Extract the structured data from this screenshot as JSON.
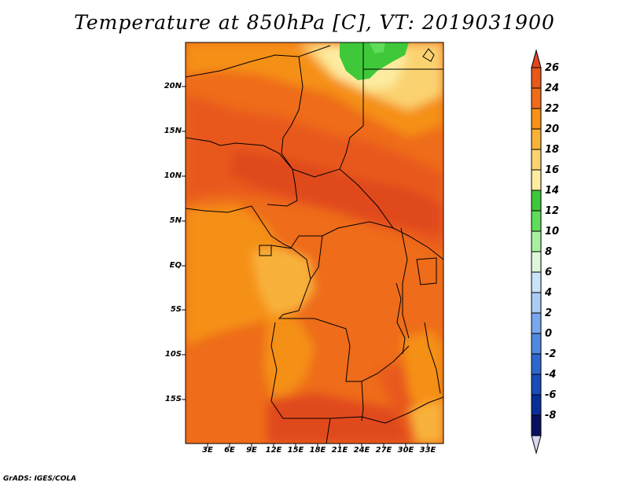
{
  "title": "Temperature at 850hPa [C], VT: 2019031900",
  "footer": "GrADS: IGES/COLA",
  "lat_labels": [
    "20N",
    "15N",
    "10N",
    "5N",
    "EQ",
    "5S",
    "10S",
    "15S"
  ],
  "lon_labels": [
    "3E",
    "6E",
    "9E",
    "12E",
    "15E",
    "18E",
    "21E",
    "24E",
    "27E",
    "30E",
    "33E"
  ],
  "colorbar": {
    "labels": [
      "26",
      "24",
      "22",
      "20",
      "18",
      "16",
      "14",
      "12",
      "10",
      "8",
      "6",
      "4",
      "2",
      "0",
      "-2",
      "-4",
      "-6",
      "-8"
    ],
    "colors": [
      "#e0481e",
      "#e8581a",
      "#ee6c1a",
      "#f59018",
      "#f8b23a",
      "#fbd270",
      "#fdeca0",
      "#3fc83a",
      "#5fdc5a",
      "#a8f0a0",
      "#dcf8d8",
      "#c8e4f8",
      "#a8ccf4",
      "#78a8ec",
      "#4f8ae0",
      "#2e68cc",
      "#184cb8",
      "#0a2e98",
      "#0a1060"
    ],
    "low_cap_color": "#d8d8f0"
  },
  "map": {
    "region": "Central Africa, 0E-35E, 20S-25N",
    "variable": "850hPa temperature (C)",
    "dominant_colors": [
      "#f59018",
      "#ee6c1a",
      "#e8581a",
      "#e0481e",
      "#f8b23a",
      "#fbd270",
      "#3fc83a"
    ]
  }
}
